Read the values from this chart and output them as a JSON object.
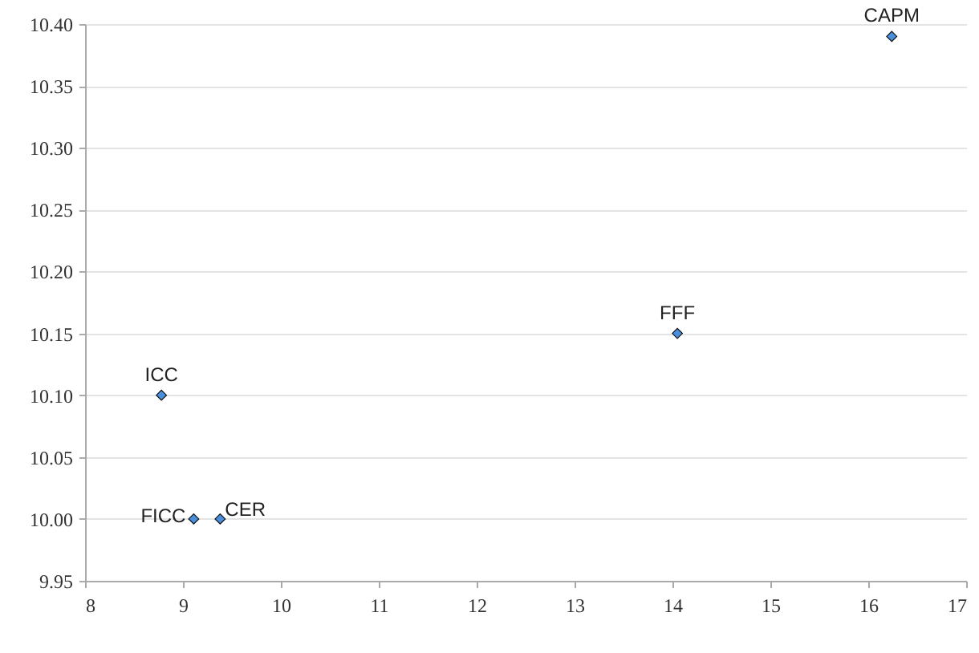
{
  "chart_data": {
    "type": "scatter",
    "series": [
      {
        "color": "#4a8fdc",
        "x": [
          8.78,
          9.11,
          9.38,
          14.05,
          16.24
        ],
        "values": [
          10.1,
          10.0,
          10.0,
          10.15,
          10.39
        ]
      }
    ],
    "xlim": [
      8,
      17
    ],
    "xticks": [
      8,
      9,
      10,
      11,
      12,
      13,
      14,
      15,
      16,
      17
    ],
    "ylim": [
      9.95,
      10.4
    ],
    "yticks": [
      9.95,
      {
        "value": 10,
        "label": "10.00"
      },
      10.05,
      {
        "value": 10.1,
        "label": "10.10"
      },
      10.15,
      {
        "value": 10.2,
        "label": "10.20"
      },
      10.25,
      {
        "value": 10.3,
        "label": "10.30"
      },
      10.35,
      {
        "value": 10.4,
        "label": "10.40"
      }
    ],
    "grid": "y",
    "marker": "diamond",
    "annotations": [
      {
        "text": "ICC",
        "x": 8.78,
        "y": 10.1
      },
      {
        "text": "FICC",
        "x": 9.11,
        "y": 10.0
      },
      {
        "text": "CER",
        "x": 9.38,
        "y": 10.0
      },
      {
        "text": "FFF",
        "x": 14.05,
        "y": 10.15
      },
      {
        "text": "CAPM",
        "x": 16.24,
        "y": 10.39
      }
    ]
  }
}
